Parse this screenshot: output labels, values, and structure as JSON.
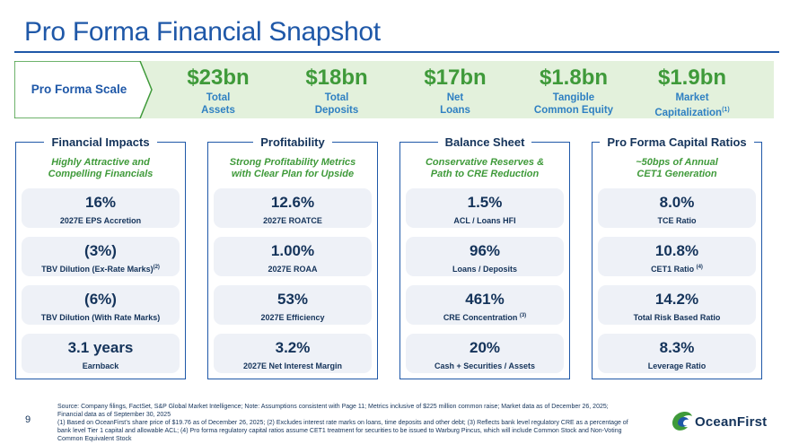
{
  "title": "Pro Forma Financial Snapshot",
  "scale": {
    "label": "Pro Forma Scale",
    "metrics": [
      {
        "value": "$23bn",
        "line1": "Total",
        "line2": "Assets",
        "note": ""
      },
      {
        "value": "$18bn",
        "line1": "Total",
        "line2": "Deposits",
        "note": ""
      },
      {
        "value": "$17bn",
        "line1": "Net",
        "line2": "Loans",
        "note": ""
      },
      {
        "value": "$1.8bn",
        "line1": "Tangible",
        "line2": "Common Equity",
        "note": ""
      },
      {
        "value": "$1.9bn",
        "line1": "Market",
        "line2": "Capitalization",
        "note": "(1)"
      }
    ]
  },
  "panels": [
    {
      "title": "Financial Impacts",
      "sub1": "Highly Attractive and",
      "sub2": "Compelling Financials",
      "cards": [
        {
          "value": "16%",
          "desc": "2027E EPS Accretion",
          "note": ""
        },
        {
          "value": "(3%)",
          "desc": "TBV Dilution (Ex-Rate Marks)",
          "note": "(2)"
        },
        {
          "value": "(6%)",
          "desc": "TBV Dilution (With Rate Marks)",
          "note": ""
        },
        {
          "value": "3.1 years",
          "desc": "Earnback",
          "note": ""
        }
      ]
    },
    {
      "title": "Profitability",
      "sub1": "Strong Profitability Metrics",
      "sub2": "with Clear Plan for Upside",
      "cards": [
        {
          "value": "12.6%",
          "desc": "2027E ROATCE",
          "note": ""
        },
        {
          "value": "1.00%",
          "desc": "2027E ROAA",
          "note": ""
        },
        {
          "value": "53%",
          "desc": "2027E Efficiency",
          "note": ""
        },
        {
          "value": "3.2%",
          "desc": "2027E Net Interest Margin",
          "note": ""
        }
      ]
    },
    {
      "title": "Balance Sheet",
      "sub1": "Conservative Reserves &",
      "sub2": "Path to CRE Reduction",
      "cards": [
        {
          "value": "1.5%",
          "desc": "ACL / Loans HFI",
          "note": ""
        },
        {
          "value": "96%",
          "desc": "Loans / Deposits",
          "note": ""
        },
        {
          "value": "461%",
          "desc": "CRE Concentration ",
          "note": "(3)"
        },
        {
          "value": "20%",
          "desc": "Cash + Securities / Assets",
          "note": ""
        }
      ]
    },
    {
      "title": "Pro Forma Capital Ratios",
      "sub1": "~50bps of Annual",
      "sub2": "CET1 Generation",
      "cards": [
        {
          "value": "8.0%",
          "desc": "TCE Ratio",
          "note": ""
        },
        {
          "value": "10.8%",
          "desc": "CET1 Ratio ",
          "note": "(4)"
        },
        {
          "value": "14.2%",
          "desc": "Total Risk Based Ratio",
          "note": ""
        },
        {
          "value": "8.3%",
          "desc": "Leverage Ratio",
          "note": ""
        }
      ]
    }
  ],
  "footer": {
    "page": "9",
    "source": "Source: Company filings, FactSet, S&P Global Market Intelligence; Note: Assumptions consistent with Page 11; Metrics inclusive of $225 million common raise; Market data as of December 26, 2025; Financial data as of September 30, 2025",
    "notes": "(1) Based on OceanFirst’s share price of $19.76 as of December 26, 2025; (2) Excludes interest rate marks on loans, time deposits and other debt; (3) Reflects bank level regulatory CRE as a percentage of bank level Tier 1 capital and allowable ACL; (4) Pro forma regulatory capital ratios assume CET1 treatment for securities to be issued to Warburg Pincus, which will include Common Stock and Non-Voting Common Equivalent Stock",
    "logo": "OceanFirst"
  },
  "colors": {
    "brand_blue": "#1f58a8",
    "navy": "#14335a",
    "green": "#3f9a3a",
    "light_blue": "#2f80c2",
    "band": "#e3f1dc",
    "card": "#eef1f7"
  }
}
